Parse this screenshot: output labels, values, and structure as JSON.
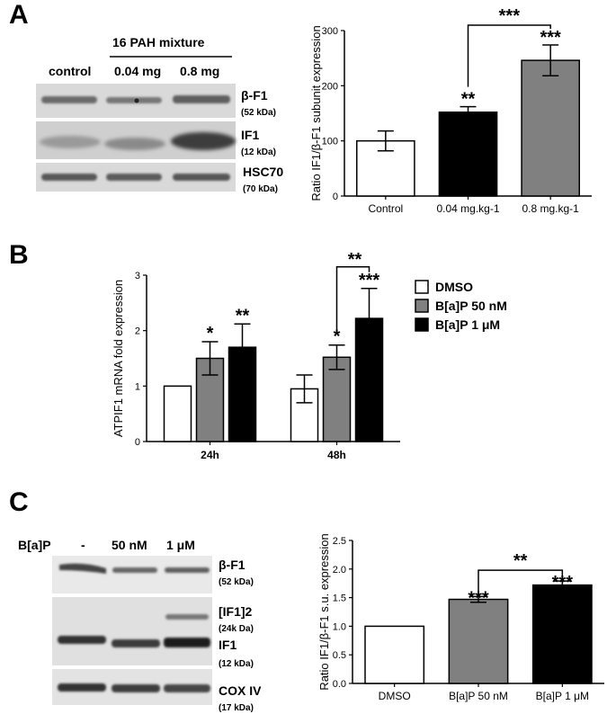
{
  "panels": {
    "a": {
      "letter": "A",
      "blot": {
        "group_label": "16 PAH mixture",
        "lanes": [
          "control",
          "0.04 mg",
          "0.8 mg"
        ],
        "bands": [
          {
            "name": "β-F1",
            "sub": "(52 kDa)"
          },
          {
            "name": "IF1",
            "sub": "(12 kDa)"
          },
          {
            "name": "HSC70",
            "sub": "(70 kDa)"
          }
        ]
      }
    },
    "b": {
      "letter": "B"
    },
    "c": {
      "letter": "C",
      "blot": {
        "treatment_label": "B[a]P",
        "lanes": [
          "-",
          "50 nM",
          "1 μM"
        ],
        "bands": [
          {
            "name": "β-F1",
            "sub": "(52 kDa)"
          },
          {
            "name": "[IF1]2",
            "sub": "(24k Da)"
          },
          {
            "name": "IF1",
            "sub": "(12 kDa)"
          },
          {
            "name": "COX IV",
            "sub": "(17 kDa)"
          }
        ]
      }
    }
  },
  "chart_data": [
    {
      "panel": "A",
      "type": "bar",
      "categories": [
        "Control",
        "0.04 mg.kg-1",
        "0.8 mg.kg-1"
      ],
      "values": [
        100,
        152,
        246
      ],
      "errors": [
        18,
        10,
        28
      ],
      "fills": [
        "#ffffff",
        "#000000",
        "#808080"
      ],
      "ylabel": "Ratio IF1/β-F1 subunit expression",
      "ylim": [
        0,
        300
      ],
      "yticks": [
        0,
        100,
        200,
        300
      ],
      "annotations": [
        {
          "category": 1,
          "text": "**"
        },
        {
          "category": 2,
          "text": "***"
        },
        {
          "bracket": [
            1,
            2
          ],
          "text": "***"
        }
      ]
    },
    {
      "panel": "B",
      "type": "bar",
      "categories": [
        "24h",
        "48h"
      ],
      "series": [
        {
          "name": "DMSO",
          "values": [
            1.0,
            0.95
          ],
          "errors": [
            0,
            0.25
          ],
          "fill": "#ffffff"
        },
        {
          "name": "B[a]P 50 nM",
          "values": [
            1.5,
            1.52
          ],
          "errors": [
            0.3,
            0.22
          ],
          "fill": "#808080"
        },
        {
          "name": "B[a]P 1 μM",
          "values": [
            1.7,
            2.22
          ],
          "errors": [
            0.42,
            0.54
          ],
          "fill": "#000000"
        }
      ],
      "ylabel": "ATPIF1 mRNA fold expression",
      "ylim": [
        0,
        3
      ],
      "yticks": [
        0,
        1,
        2,
        3
      ],
      "legend": "right",
      "annotations": [
        {
          "category": 0,
          "series": 1,
          "text": "*"
        },
        {
          "category": 0,
          "series": 2,
          "text": "**"
        },
        {
          "category": 1,
          "series": 1,
          "text": "*"
        },
        {
          "category": 1,
          "series": 2,
          "text": "***"
        },
        {
          "bracket": [
            [
              1,
              1
            ],
            [
              1,
              2
            ]
          ],
          "text": "**"
        }
      ]
    },
    {
      "panel": "C",
      "type": "bar",
      "categories": [
        "DMSO",
        "B[a]P 50 nM",
        "B[a]P 1 μM"
      ],
      "values": [
        1.0,
        1.47,
        1.72
      ],
      "errors": [
        0,
        0.05,
        0.07
      ],
      "fills": [
        "#ffffff",
        "#808080",
        "#000000"
      ],
      "ylabel": "Ratio IF1/β-F1 s.u. expression",
      "ylim": [
        0,
        2.5
      ],
      "yticks": [
        0.0,
        0.5,
        1.0,
        1.5,
        2.0,
        2.5
      ],
      "annotations": [
        {
          "category": 1,
          "text": "***"
        },
        {
          "category": 2,
          "text": "***"
        },
        {
          "bracket": [
            1,
            2
          ],
          "text": "**"
        }
      ]
    }
  ]
}
